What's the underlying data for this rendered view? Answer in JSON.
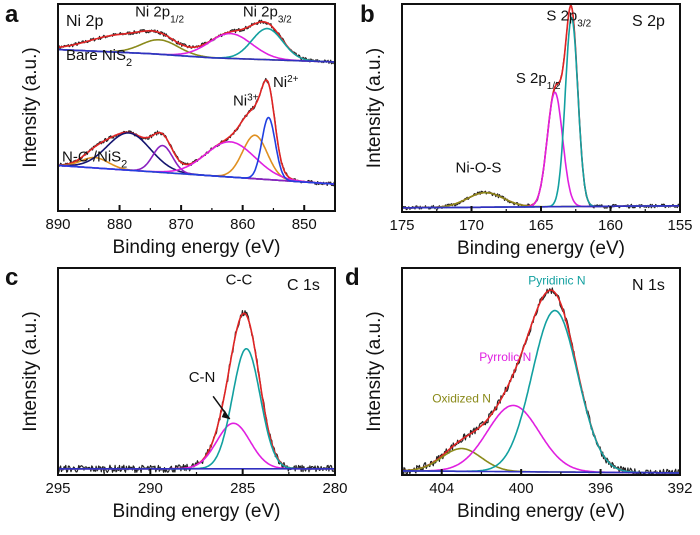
{
  "chart_data": [
    {
      "panel": "a",
      "type": "line",
      "title": "Ni 2p",
      "xlabel": "Binding energy (eV)",
      "ylabel": "Intensity (a.u.)",
      "xlim": [
        890,
        845
      ],
      "ylim": [
        0,
        1
      ],
      "x_ticks": [
        890,
        880,
        870,
        860,
        850
      ],
      "samples": [
        "Bare NiS",
        "N-C /NiS"
      ],
      "annotations": [
        {
          "text": "Ni 2p",
          "sub": "1/2",
          "x": 873.5,
          "y": 0.94
        },
        {
          "text": "Ni 2p",
          "sub": "3/2",
          "x": 856,
          "y": 0.94
        },
        {
          "text": "Ni",
          "sup": "3+",
          "x": 859.5,
          "y": 0.51
        },
        {
          "text": "Ni",
          "sup": "2+",
          "x": 853,
          "y": 0.6
        }
      ],
      "series": [
        {
          "sample": 1,
          "color": "#222222",
          "noise": 0.006,
          "baseline": [
            [
              890,
              0.78
            ],
            [
              875,
              0.76
            ],
            [
              865,
              0.74
            ],
            [
              845,
              0.72
            ]
          ],
          "peaks": [
            [
              880,
              5,
              0.08
            ],
            [
              873.5,
              3,
              0.07
            ],
            [
              862,
              3.5,
              0.12
            ],
            [
              856,
              2.5,
              0.15
            ]
          ]
        },
        {
          "sample": 1,
          "color": "#e02424",
          "baseline": [
            [
              890,
              0.78
            ],
            [
              875,
              0.76
            ],
            [
              865,
              0.74
            ],
            [
              845,
              0.72
            ]
          ],
          "peaks": [
            [
              880,
              5,
              0.08
            ],
            [
              873.5,
              3,
              0.07
            ],
            [
              862,
              3.5,
              0.12
            ],
            [
              856,
              2.5,
              0.15
            ]
          ]
        },
        {
          "sample": 1,
          "color": "#8a8a1a",
          "baseline": [
            [
              890,
              0.78
            ],
            [
              875,
              0.76
            ],
            [
              865,
              0.74
            ],
            [
              845,
              0.72
            ]
          ],
          "peaks": [
            [
              873.5,
              3,
              0.07
            ]
          ]
        },
        {
          "sample": 1,
          "color": "#e020e0",
          "baseline": [
            [
              890,
              0.78
            ],
            [
              875,
              0.76
            ],
            [
              865,
              0.74
            ],
            [
              845,
              0.72
            ]
          ],
          "peaks": [
            [
              862,
              3.5,
              0.12
            ]
          ]
        },
        {
          "sample": 1,
          "color": "#12a0a0",
          "baseline": [
            [
              890,
              0.78
            ],
            [
              875,
              0.76
            ],
            [
              865,
              0.74
            ],
            [
              845,
              0.72
            ]
          ],
          "peaks": [
            [
              856,
              2.5,
              0.15
            ]
          ]
        },
        {
          "sample": 1,
          "color": "#3030c0",
          "baseline": [
            [
              890,
              0.78
            ],
            [
              875,
              0.76
            ],
            [
              865,
              0.74
            ],
            [
              845,
              0.72
            ]
          ],
          "peaks": []
        },
        {
          "sample": 2,
          "color": "#222222",
          "noise": 0.006,
          "baseline": [
            [
              890,
              0.22
            ],
            [
              875,
              0.19
            ],
            [
              865,
              0.17
            ],
            [
              845,
              0.13
            ]
          ],
          "peaks": [
            [
              884,
              2.2,
              0.05
            ],
            [
              878.5,
              3.5,
              0.18
            ],
            [
              873,
              1.6,
              0.13
            ],
            [
              862,
              4,
              0.17
            ],
            [
              858,
              2,
              0.21
            ],
            [
              855.8,
              1.1,
              0.3
            ]
          ]
        },
        {
          "sample": 2,
          "color": "#e02424",
          "baseline": [
            [
              890,
              0.22
            ],
            [
              875,
              0.19
            ],
            [
              865,
              0.17
            ],
            [
              845,
              0.13
            ]
          ],
          "peaks": [
            [
              884,
              2.2,
              0.05
            ],
            [
              878.5,
              3.5,
              0.18
            ],
            [
              873,
              1.6,
              0.13
            ],
            [
              862,
              4,
              0.17
            ],
            [
              858,
              2,
              0.21
            ],
            [
              855.8,
              1.1,
              0.3
            ]
          ]
        },
        {
          "sample": 2,
          "color": "#e09020",
          "baseline": [
            [
              890,
              0.22
            ],
            [
              875,
              0.19
            ],
            [
              865,
              0.17
            ],
            [
              845,
              0.13
            ]
          ],
          "peaks": [
            [
              884,
              2.2,
              0.05
            ],
            [
              858,
              2,
              0.21
            ]
          ]
        },
        {
          "sample": 2,
          "color": "#151570",
          "baseline": [
            [
              890,
              0.22
            ],
            [
              875,
              0.19
            ],
            [
              865,
              0.17
            ],
            [
              845,
              0.13
            ]
          ],
          "peaks": [
            [
              878.5,
              3.5,
              0.18
            ]
          ]
        },
        {
          "sample": 2,
          "color": "#8a20c0",
          "baseline": [
            [
              890,
              0.22
            ],
            [
              875,
              0.19
            ],
            [
              865,
              0.17
            ],
            [
              845,
              0.13
            ]
          ],
          "peaks": [
            [
              873,
              1.6,
              0.13
            ]
          ]
        },
        {
          "sample": 2,
          "color": "#e020e0",
          "baseline": [
            [
              890,
              0.22
            ],
            [
              875,
              0.19
            ],
            [
              865,
              0.17
            ],
            [
              845,
              0.13
            ]
          ],
          "peaks": [
            [
              862,
              4,
              0.17
            ]
          ]
        },
        {
          "sample": 2,
          "color": "#2040e0",
          "baseline": [
            [
              890,
              0.22
            ],
            [
              875,
              0.19
            ],
            [
              865,
              0.17
            ],
            [
              845,
              0.13
            ]
          ],
          "peaks": [
            [
              855.8,
              1.1,
              0.3
            ]
          ]
        }
      ]
    },
    {
      "panel": "b",
      "type": "line",
      "title": "S 2p",
      "xlabel": "Binding energy (eV)",
      "ylabel": "Intensity (a.u.)",
      "xlim": [
        175,
        155
      ],
      "ylim": [
        0,
        1
      ],
      "x_ticks": [
        175,
        170,
        165,
        160,
        155
      ],
      "annotations": [
        {
          "text": "S 2p",
          "sub": "3/2",
          "x": 163,
          "y": 0.92
        },
        {
          "text": "S 2p",
          "sub": "1/2",
          "x": 165.2,
          "y": 0.62
        },
        {
          "text": "Ni-O-S",
          "x": 169.5,
          "y": 0.19
        }
      ],
      "series": [
        {
          "color": "#222222",
          "noise": 0.006,
          "baseline": [
            [
              175,
              0.02
            ],
            [
              155,
              0.03
            ]
          ],
          "peaks": [
            [
              169,
              1.3,
              0.07
            ],
            [
              164,
              0.55,
              0.55
            ],
            [
              162.8,
              0.45,
              0.91
            ]
          ]
        },
        {
          "color": "#e02424",
          "baseline": [
            [
              175,
              0.02
            ],
            [
              155,
              0.03
            ]
          ],
          "peaks": [
            [
              169,
              1.3,
              0.07
            ],
            [
              164,
              0.55,
              0.55
            ],
            [
              162.8,
              0.45,
              0.91
            ]
          ]
        },
        {
          "color": "#8a8a1a",
          "baseline": [
            [
              175,
              0.02
            ],
            [
              155,
              0.03
            ]
          ],
          "peaks": [
            [
              169,
              1.3,
              0.07
            ]
          ]
        },
        {
          "color": "#e020e0",
          "baseline": [
            [
              175,
              0.02
            ],
            [
              155,
              0.03
            ]
          ],
          "peaks": [
            [
              164,
              0.55,
              0.55
            ]
          ]
        },
        {
          "color": "#12a0a0",
          "baseline": [
            [
              175,
              0.02
            ],
            [
              155,
              0.03
            ]
          ],
          "peaks": [
            [
              162.8,
              0.45,
              0.91
            ]
          ]
        },
        {
          "color": "#3030c0",
          "baseline": [
            [
              175,
              0.02
            ],
            [
              155,
              0.03
            ]
          ],
          "peaks": []
        }
      ]
    },
    {
      "panel": "c",
      "type": "line",
      "title": "C 1s",
      "xlabel": "Binding energy (eV)",
      "ylabel": "Intensity (a.u.)",
      "xlim": [
        295,
        280
      ],
      "ylim": [
        0,
        1
      ],
      "x_ticks": [
        295,
        290,
        285,
        280
      ],
      "annotations": [
        {
          "text": "C-C",
          "x": 285.2,
          "y": 0.92
        },
        {
          "text": "C-N",
          "x": 287.2,
          "y": 0.45
        }
      ],
      "series": [
        {
          "color": "#222222",
          "noise": 0.012,
          "baseline": [
            [
              295,
              0.03
            ],
            [
              280,
              0.03
            ]
          ],
          "peaks": [
            [
              285.5,
              0.9,
              0.22
            ],
            [
              284.8,
              0.75,
              0.58
            ]
          ]
        },
        {
          "color": "#e02424",
          "baseline": [
            [
              295,
              0.03
            ],
            [
              280,
              0.03
            ]
          ],
          "peaks": [
            [
              285.5,
              0.9,
              0.22
            ],
            [
              284.8,
              0.75,
              0.58
            ]
          ]
        },
        {
          "color": "#e020e0",
          "baseline": [
            [
              295,
              0.03
            ],
            [
              280,
              0.03
            ]
          ],
          "peaks": [
            [
              285.5,
              0.9,
              0.22
            ]
          ]
        },
        {
          "color": "#12a0a0",
          "baseline": [
            [
              295,
              0.03
            ],
            [
              280,
              0.03
            ]
          ],
          "peaks": [
            [
              284.8,
              0.75,
              0.58
            ]
          ]
        },
        {
          "color": "#3030c0",
          "baseline": [
            [
              295,
              0.03
            ],
            [
              280,
              0.03
            ]
          ],
          "peaks": []
        }
      ]
    },
    {
      "panel": "d",
      "type": "line",
      "title": "N 1s",
      "xlabel": "Binding energy (eV)",
      "ylabel": "Intensity (a.u.)",
      "xlim": [
        406,
        392
      ],
      "ylim": [
        0,
        1
      ],
      "x_ticks": [
        404,
        400,
        396,
        392
      ],
      "annotations": [
        {
          "text": "Pyridinic N",
          "x": 398.2,
          "y": 0.92
        },
        {
          "text": "Pyrrolic N",
          "x": 400.8,
          "y": 0.55
        },
        {
          "text": "Oxidized N",
          "x": 403,
          "y": 0.35
        }
      ],
      "series": [
        {
          "color": "#222222",
          "noise": 0.012,
          "baseline": [
            [
              406,
              0.02
            ],
            [
              392,
              0.01
            ]
          ],
          "peaks": [
            [
              403,
              1.0,
              0.11
            ],
            [
              400.4,
              1.3,
              0.32
            ],
            [
              398.3,
              1.15,
              0.78
            ]
          ]
        },
        {
          "color": "#e02424",
          "baseline": [
            [
              406,
              0.02
            ],
            [
              392,
              0.01
            ]
          ],
          "peaks": [
            [
              403,
              1.0,
              0.11
            ],
            [
              400.4,
              1.3,
              0.32
            ],
            [
              398.3,
              1.15,
              0.78
            ]
          ]
        },
        {
          "color": "#8a8a1a",
          "baseline": [
            [
              406,
              0.02
            ],
            [
              392,
              0.01
            ]
          ],
          "peaks": [
            [
              403,
              1.0,
              0.11
            ]
          ]
        },
        {
          "color": "#e020e0",
          "baseline": [
            [
              406,
              0.02
            ],
            [
              392,
              0.01
            ]
          ],
          "peaks": [
            [
              400.4,
              1.3,
              0.32
            ]
          ]
        },
        {
          "color": "#12a0a0",
          "baseline": [
            [
              406,
              0.02
            ],
            [
              392,
              0.01
            ]
          ],
          "peaks": [
            [
              398.3,
              1.15,
              0.78
            ]
          ]
        },
        {
          "color": "#3030c0",
          "baseline": [
            [
              406,
              0.02
            ],
            [
              392,
              0.01
            ]
          ],
          "peaks": []
        }
      ]
    }
  ]
}
